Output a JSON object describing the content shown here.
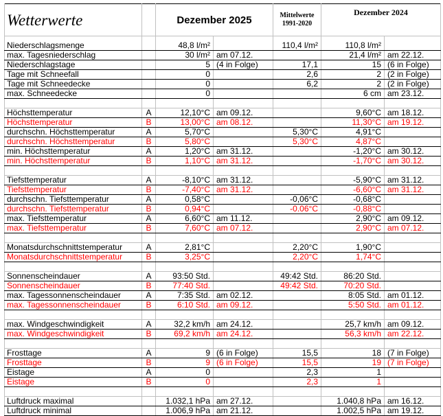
{
  "header": {
    "title": "Wetterwerte",
    "col_2025": "Dezember 2025",
    "col_mittel_line1": "Mittelwerte",
    "col_mittel_line2": "1991-2020",
    "col_2024": "Dezember 2024"
  },
  "colors": {
    "station_b": "#ff0000",
    "station_a": "#000000"
  },
  "rows": [
    {
      "label": "Niederschlagsmenge",
      "ab": "",
      "v25": "48,8 l/m²",
      "d25": "",
      "mit": "110,4 l/m²",
      "v24": "110,8 l/m²",
      "d24": "",
      "red": false,
      "first": true
    },
    {
      "label": "max. Tagesniederschlag",
      "ab": "",
      "v25": "30 l/m²",
      "d25": "am 07.12.",
      "mit": "",
      "v24": "21,4 l/m²",
      "d24": "am 22.12.",
      "red": false
    },
    {
      "label": "Niederschlagstage",
      "ab": "",
      "v25": "5",
      "d25": "(4 in Folge)",
      "mit": "17,1",
      "v24": "15",
      "d24": "(6 in Folge)",
      "red": false
    },
    {
      "label": "Tage mit Schneefall",
      "ab": "",
      "v25": "0",
      "d25": "",
      "mit": "2,6",
      "v24": "2",
      "d24": "(2 in Folge)",
      "red": false
    },
    {
      "label": "Tage mit Schneedecke",
      "ab": "",
      "v25": "0",
      "d25": "",
      "mit": "6,2",
      "v24": "2",
      "d24": "(2 in Folge)",
      "red": false
    },
    {
      "label": "max. Schneedecke",
      "ab": "",
      "v25": "0",
      "d25": "",
      "mit": "",
      "v24": "6 cm",
      "d24": "am 23.12.",
      "red": false
    },
    {
      "blank": true
    },
    {
      "label": "Höchsttemperatur",
      "ab": "A",
      "v25": "12,10°C",
      "d25": "am 09.12.",
      "mit": "",
      "v24": "9,60°C",
      "d24": "am 18.12.",
      "red": false
    },
    {
      "label": "Höchsttemperatur",
      "ab": "B",
      "v25": "13,00°C",
      "d25": "am 08.12.",
      "mit": "",
      "v24": "11,30°C",
      "d24": "am 19.12.",
      "red": true
    },
    {
      "label": "durchschn. Höchsttemperatur",
      "ab": "A",
      "v25": "5,70°C",
      "d25": "",
      "mit": "5,30°C",
      "v24": "4,91°C",
      "d24": "",
      "red": false
    },
    {
      "label": "durchschn. Höchsttemperatur",
      "ab": "B",
      "v25": "5,80°C",
      "d25": "",
      "mit": "5,30°C",
      "v24": "4,87°C",
      "d24": "",
      "red": true
    },
    {
      "label": "min. Höchsttemperatur",
      "ab": "A",
      "v25": "1,20°C",
      "d25": "am 31.12.",
      "mit": "",
      "v24": "-1,20°C",
      "d24": "am 30.12.",
      "red": false
    },
    {
      "label": "min. Höchsttemperatur",
      "ab": "B",
      "v25": "1,10°C",
      "d25": "am 31.12.",
      "mit": "",
      "v24": "-1,70°C",
      "d24": "am 30.12.",
      "red": true
    },
    {
      "blank": true
    },
    {
      "label": "Tiefsttemperatur",
      "ab": "A",
      "v25": "-8,10°C",
      "d25": "am 31.12.",
      "mit": "",
      "v24": "-5,90°C",
      "d24": "am 31.12.",
      "red": false
    },
    {
      "label": "Tiefsttemperatur",
      "ab": "B",
      "v25": "-7,40°C",
      "d25": "am 31.12.",
      "mit": "",
      "v24": "-6,60°C",
      "d24": "am 31.12.",
      "red": true
    },
    {
      "label": "durchschn. Tiefsttemperatur",
      "ab": "A",
      "v25": "0,58°C",
      "d25": "",
      "mit": "-0,06°C",
      "v24": "-0,68°C",
      "d24": "",
      "red": false
    },
    {
      "label": "durchschn. Tiefsttemperatur",
      "ab": "B",
      "v25": "0,94°C",
      "d25": "",
      "mit": "-0.06°C",
      "v24": "-0,88°C",
      "d24": "",
      "red": true
    },
    {
      "label": "max. Tiefsttemperatur",
      "ab": "A",
      "v25": "6,60°C",
      "d25": "am 11.12.",
      "mit": "",
      "v24": "2,90°C",
      "d24": "am 09.12.",
      "red": false
    },
    {
      "label": "max. Tiefsttemperatur",
      "ab": "B",
      "v25": "7,60°C",
      "d25": "am 07.12.",
      "mit": "",
      "v24": "2,90°C",
      "d24": "am 07.12.",
      "red": true
    },
    {
      "blank": true
    },
    {
      "label": "Monatsdurchschnittstemperatur",
      "ab": "A",
      "v25": "2,81°C",
      "d25": "",
      "mit": "2,20°C",
      "v24": "1,90°C",
      "d24": "",
      "red": false
    },
    {
      "label": "Monatsdurchschnittstemperatur",
      "ab": "B",
      "v25": "3,25°C",
      "d25": "",
      "mit": "2,20°C",
      "v24": "1,74°C",
      "d24": "",
      "red": true
    },
    {
      "blank": true
    },
    {
      "label": "Sonnenscheindauer",
      "ab": "A",
      "v25": "93:50 Std.",
      "d25": "",
      "mit": "49:42 Std.",
      "v24": "86:20 Std.",
      "d24": "",
      "red": false
    },
    {
      "label": "Sonnenscheindauer",
      "ab": "B",
      "v25": "77:40 Std.",
      "d25": "",
      "mit": "49:42 Std.",
      "v24": "70:20 Std.",
      "d24": "",
      "red": true
    },
    {
      "label": "max. Tagessonnenscheindauer",
      "ab": "A",
      "v25": "7:35 Std.",
      "d25": "am 02.12.",
      "mit": "",
      "v24": "8:05 Std.",
      "d24": "am 01.12.",
      "red": false
    },
    {
      "label": "max. Tagessonnenscheindauer",
      "ab": "B",
      "v25": "6:10 Std.",
      "d25": "am 09.12.",
      "mit": "",
      "v24": "5:50 Std.",
      "d24": "am 01.12.",
      "red": true
    },
    {
      "blank": true
    },
    {
      "label": "max. Windgeschwindigkeit",
      "ab": "A",
      "v25": "32,2 km/h",
      "d25": "am 24.12.",
      "mit": "",
      "v24": "25,7 km/h",
      "d24": "am 09.12.",
      "red": false
    },
    {
      "label": "max. Windgeschwindigkeit",
      "ab": "B",
      "v25": "69,2 km/h",
      "d25": "am 24.12.",
      "mit": "",
      "v24": "56,3 km/h",
      "d24": "am 22.12.",
      "red": true
    },
    {
      "blank": true
    },
    {
      "label": "Frosttage",
      "ab": "A",
      "v25": "9",
      "d25": "(6 in Folge)",
      "mit": "15,5",
      "v24": "18",
      "d24": "(7 in Folge)",
      "red": false
    },
    {
      "label": "Frosttage",
      "ab": "B",
      "v25": "9",
      "d25": "(6 in Folge)",
      "mit": "15,5",
      "v24": "19",
      "d24": "(7 in Folge)",
      "red": true
    },
    {
      "label": "Eistage",
      "ab": "A",
      "v25": "0",
      "d25": "",
      "mit": "2,3",
      "v24": "1",
      "d24": "",
      "red": false
    },
    {
      "label": "Eistage",
      "ab": "B",
      "v25": "0",
      "d25": "",
      "mit": "2,3",
      "v24": "1",
      "d24": "",
      "red": true
    },
    {
      "blank": true
    },
    {
      "label": "Luftdruck maximal",
      "ab": "",
      "v25": "1.032,1 hPa",
      "d25": "am 27.12.",
      "mit": "",
      "v24": "1.040,8 hPa",
      "d24": "am 16.12.",
      "red": false
    },
    {
      "label": "Luftdruck minimal",
      "ab": "",
      "v25": "1.006,9 hPa",
      "d25": "am 21.12.",
      "mit": "",
      "v24": "1.002,5 hPa",
      "d24": "am 19.12.",
      "red": false
    }
  ]
}
